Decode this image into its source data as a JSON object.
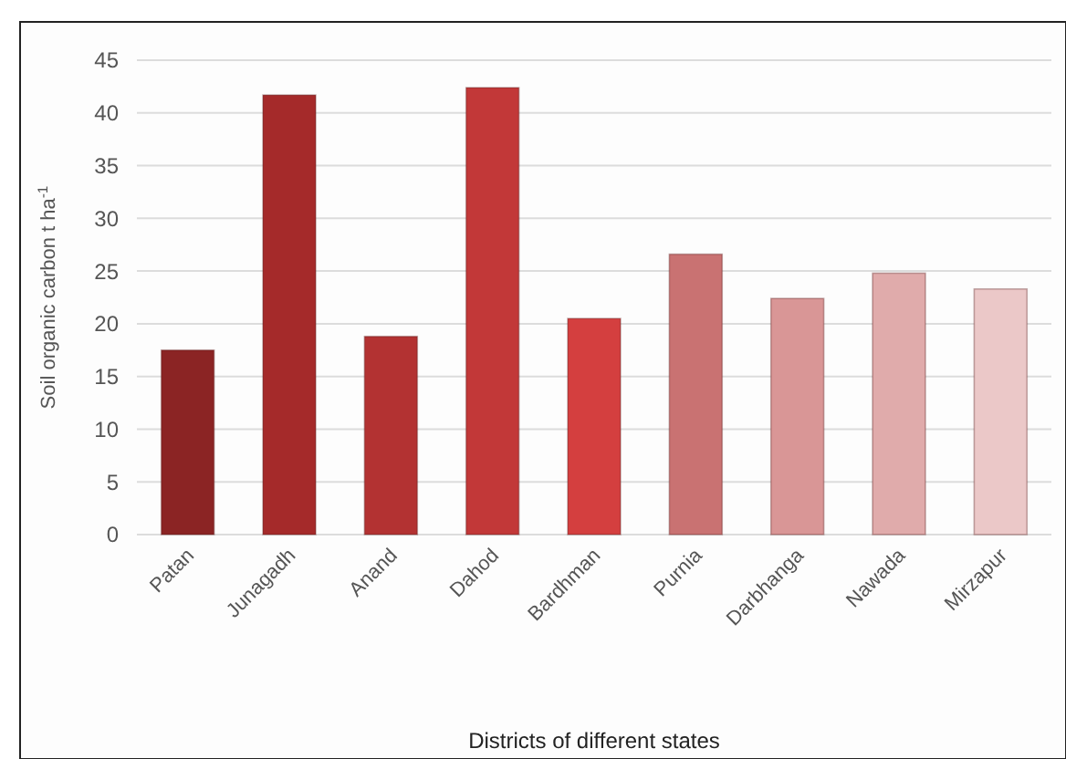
{
  "chart_data": {
    "type": "bar",
    "xlabel": "Districts of different states",
    "ylabel": "Soil organic carbon t ha$^{-1}$",
    "categories": [
      "Patan",
      "Junagadh",
      "Anand",
      "Dahod",
      "Bardhman",
      "Purnia",
      "Darbhanga",
      "Nawada",
      "Mirzapur"
    ],
    "values": [
      17.5,
      41.7,
      18.8,
      42.4,
      20.5,
      26.6,
      22.4,
      24.8,
      23.3
    ],
    "colors": [
      "#8b2424",
      "#a52a2a",
      "#b33232",
      "#c23838",
      "#d43f3f",
      "#c97272",
      "#d99696",
      "#e0abab",
      "#ebc8c8"
    ],
    "ylim": [
      0,
      45
    ],
    "yticks": [
      0,
      5,
      10,
      15,
      20,
      25,
      30,
      35,
      40,
      45
    ],
    "grid": "y"
  }
}
